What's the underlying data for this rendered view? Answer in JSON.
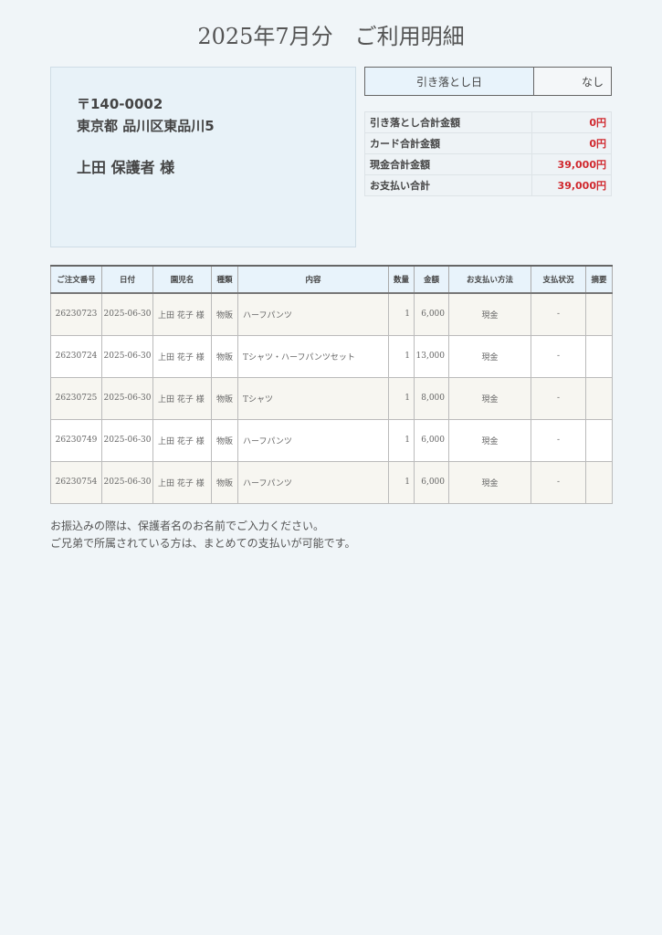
{
  "title": "2025年7月分　ご利用明細",
  "address": {
    "postal": "〒140-0002",
    "line": "東京都 品川区東品川5",
    "name": "上田 保護者 様"
  },
  "debit_date": {
    "label": "引き落とし日",
    "value": "なし"
  },
  "summary": [
    {
      "label": "引き落とし合計金額",
      "value": "0円"
    },
    {
      "label": "カード合計金額",
      "value": "0円"
    },
    {
      "label": "現金合計金額",
      "value": "39,000円"
    },
    {
      "label": "お支払い合計",
      "value": "39,000円"
    }
  ],
  "colors": {
    "accent_red": "#d0282e",
    "header_bg": "#e8f3fb"
  },
  "table": {
    "headers": [
      "ご注文番号",
      "日付",
      "園児名",
      "種類",
      "内容",
      "数量",
      "金額",
      "お支払い方法",
      "支払状況",
      "摘要"
    ],
    "rows": [
      [
        "26230723",
        "2025-06-30",
        "上田 花子 様",
        "物販",
        "ハーフパンツ",
        "1",
        "6,000",
        "現金",
        "-",
        ""
      ],
      [
        "26230724",
        "2025-06-30",
        "上田 花子 様",
        "物販",
        "Tシャツ・ハーフパンツセット",
        "1",
        "13,000",
        "現金",
        "-",
        ""
      ],
      [
        "26230725",
        "2025-06-30",
        "上田 花子 様",
        "物販",
        "Tシャツ",
        "1",
        "8,000",
        "現金",
        "-",
        ""
      ],
      [
        "26230749",
        "2025-06-30",
        "上田 花子 様",
        "物販",
        "ハーフパンツ",
        "1",
        "6,000",
        "現金",
        "-",
        ""
      ],
      [
        "26230754",
        "2025-06-30",
        "上田 花子 様",
        "物販",
        "ハーフパンツ",
        "1",
        "6,000",
        "現金",
        "-",
        ""
      ]
    ]
  },
  "notes": [
    "お振込みの際は、保護者名のお名前でご入力ください。",
    "ご兄弟で所属されている方は、まとめての支払いが可能です。"
  ]
}
